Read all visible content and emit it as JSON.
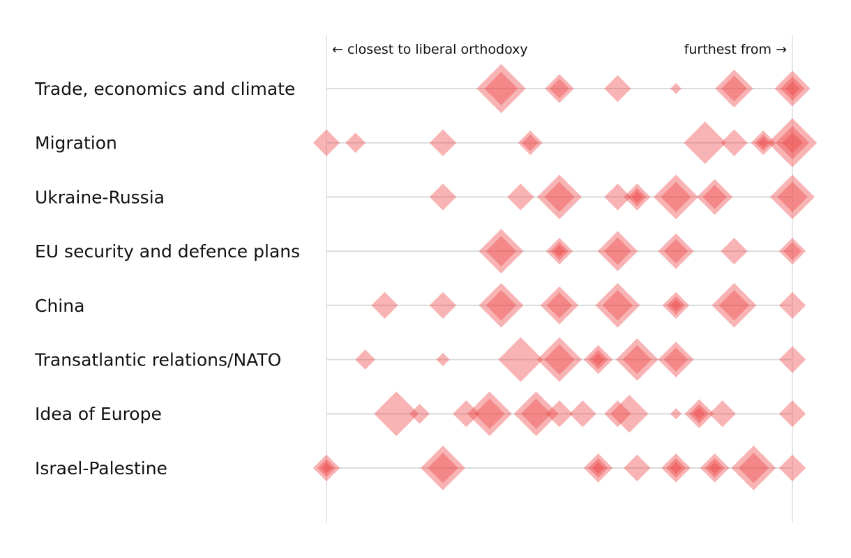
{
  "chart_data": {
    "type": "scatter",
    "title": "",
    "x_axis": {
      "min": 0,
      "max": 1,
      "left_label": "← closest to liberal orthodoxy",
      "right_label": "furthest from →"
    },
    "colors": {
      "marker": "#ee4444",
      "row_line": "#dcdcdc",
      "edge_line": "#e6e6e6"
    },
    "rows": [
      {
        "label": "Trade, economics and climate",
        "points": [
          {
            "x": 0.375,
            "size": 2.2,
            "count": 2
          },
          {
            "x": 0.5,
            "size": 1.3,
            "count": 2
          },
          {
            "x": 0.625,
            "size": 1.2,
            "count": 1
          },
          {
            "x": 0.75,
            "size": 0.5,
            "count": 1
          },
          {
            "x": 0.875,
            "size": 1.7,
            "count": 2
          },
          {
            "x": 1.0,
            "size": 1.6,
            "count": 3
          }
        ]
      },
      {
        "label": "Migration",
        "points": [
          {
            "x": 0.0,
            "size": 1.2,
            "count": 1
          },
          {
            "x": 0.0625,
            "size": 0.9,
            "count": 1
          },
          {
            "x": 0.25,
            "size": 1.2,
            "count": 1
          },
          {
            "x": 0.4375,
            "size": 1.1,
            "count": 2
          },
          {
            "x": 0.8125,
            "size": 1.9,
            "count": 1
          },
          {
            "x": 0.875,
            "size": 1.2,
            "count": 1
          },
          {
            "x": 0.9375,
            "size": 1.1,
            "count": 3
          },
          {
            "x": 1.0,
            "size": 2.2,
            "count": 3
          }
        ]
      },
      {
        "label": "Ukraine-Russia",
        "points": [
          {
            "x": 0.25,
            "size": 1.2,
            "count": 1
          },
          {
            "x": 0.4167,
            "size": 1.2,
            "count": 1
          },
          {
            "x": 0.5,
            "size": 2.0,
            "count": 2
          },
          {
            "x": 0.625,
            "size": 1.2,
            "count": 1
          },
          {
            "x": 0.6667,
            "size": 1.2,
            "count": 3
          },
          {
            "x": 0.75,
            "size": 2.0,
            "count": 2
          },
          {
            "x": 0.8333,
            "size": 1.6,
            "count": 2
          },
          {
            "x": 1.0,
            "size": 2.0,
            "count": 2
          }
        ]
      },
      {
        "label": "EU security and defence plans",
        "points": [
          {
            "x": 0.375,
            "size": 2.0,
            "count": 2
          },
          {
            "x": 0.5,
            "size": 1.2,
            "count": 3
          },
          {
            "x": 0.625,
            "size": 1.8,
            "count": 2
          },
          {
            "x": 0.75,
            "size": 1.6,
            "count": 2
          },
          {
            "x": 0.875,
            "size": 1.2,
            "count": 1
          },
          {
            "x": 1.0,
            "size": 1.2,
            "count": 2
          }
        ]
      },
      {
        "label": "China",
        "points": [
          {
            "x": 0.125,
            "size": 1.2,
            "count": 1
          },
          {
            "x": 0.25,
            "size": 1.2,
            "count": 1
          },
          {
            "x": 0.375,
            "size": 2.0,
            "count": 2
          },
          {
            "x": 0.5,
            "size": 1.7,
            "count": 2
          },
          {
            "x": 0.625,
            "size": 2.0,
            "count": 2
          },
          {
            "x": 0.75,
            "size": 1.2,
            "count": 3
          },
          {
            "x": 0.875,
            "size": 2.0,
            "count": 2
          },
          {
            "x": 1.0,
            "size": 1.2,
            "count": 1
          }
        ]
      },
      {
        "label": "Transatlantic relations/NATO",
        "points": [
          {
            "x": 0.0833,
            "size": 0.9,
            "count": 1
          },
          {
            "x": 0.25,
            "size": 0.6,
            "count": 1
          },
          {
            "x": 0.4167,
            "size": 2.0,
            "count": 1
          },
          {
            "x": 0.5,
            "size": 2.0,
            "count": 2
          },
          {
            "x": 0.5833,
            "size": 1.3,
            "count": 3
          },
          {
            "x": 0.6667,
            "size": 1.9,
            "count": 2
          },
          {
            "x": 0.75,
            "size": 1.6,
            "count": 2
          },
          {
            "x": 1.0,
            "size": 1.2,
            "count": 1
          }
        ]
      },
      {
        "label": "Idea of Europe",
        "points": [
          {
            "x": 0.15,
            "size": 2.0,
            "count": 1
          },
          {
            "x": 0.2,
            "size": 0.9,
            "count": 1
          },
          {
            "x": 0.3,
            "size": 1.2,
            "count": 1
          },
          {
            "x": 0.35,
            "size": 2.0,
            "count": 2
          },
          {
            "x": 0.45,
            "size": 2.0,
            "count": 2
          },
          {
            "x": 0.5,
            "size": 1.2,
            "count": 1
          },
          {
            "x": 0.55,
            "size": 1.2,
            "count": 1
          },
          {
            "x": 0.625,
            "size": 1.2,
            "count": 1
          },
          {
            "x": 0.65,
            "size": 1.7,
            "count": 1
          },
          {
            "x": 0.75,
            "size": 0.5,
            "count": 1
          },
          {
            "x": 0.8,
            "size": 1.3,
            "count": 3
          },
          {
            "x": 0.85,
            "size": 1.2,
            "count": 1
          },
          {
            "x": 1.0,
            "size": 1.2,
            "count": 1
          }
        ]
      },
      {
        "label": "Israel-Palestine",
        "points": [
          {
            "x": 0.0,
            "size": 1.2,
            "count": 3
          },
          {
            "x": 0.25,
            "size": 2.0,
            "count": 2
          },
          {
            "x": 0.5833,
            "size": 1.3,
            "count": 3
          },
          {
            "x": 0.6667,
            "size": 1.2,
            "count": 1
          },
          {
            "x": 0.75,
            "size": 1.3,
            "count": 3
          },
          {
            "x": 0.8333,
            "size": 1.3,
            "count": 3
          },
          {
            "x": 0.9167,
            "size": 2.0,
            "count": 2
          },
          {
            "x": 1.0,
            "size": 1.2,
            "count": 1
          }
        ]
      }
    ]
  }
}
